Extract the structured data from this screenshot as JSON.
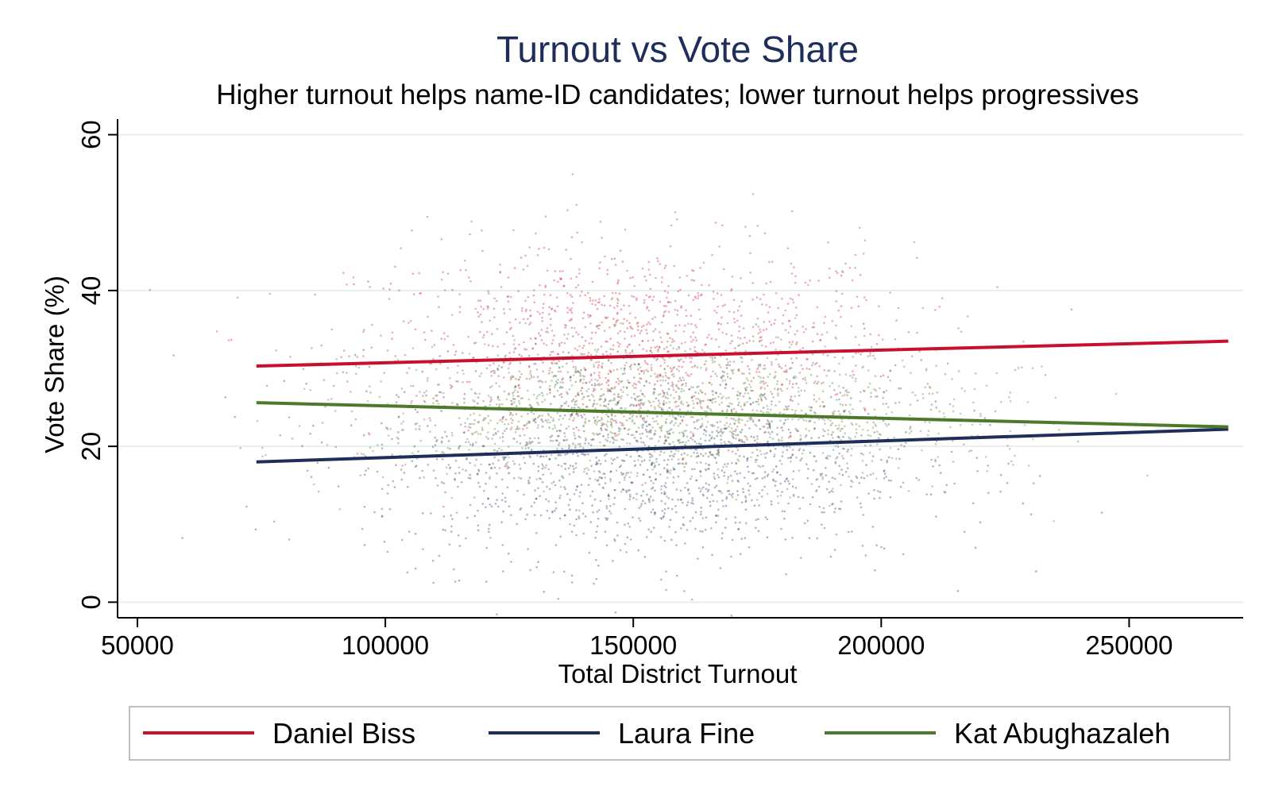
{
  "chart_data": {
    "type": "scatter",
    "title": "Turnout vs Vote Share",
    "subtitle": "Higher turnout helps name-ID candidates; lower turnout helps progressives",
    "xlabel": "Total District Turnout",
    "ylabel": "Vote Share (%)",
    "xlim": [
      46000,
      273000
    ],
    "ylim": [
      -2,
      62
    ],
    "xticks": [
      50000,
      100000,
      150000,
      200000,
      250000
    ],
    "xtick_labels": [
      "50000",
      "100000",
      "150000",
      "200000",
      "250000"
    ],
    "yticks": [
      0,
      20,
      40,
      60
    ],
    "ytick_labels": [
      "0",
      "20",
      "40",
      "60"
    ],
    "grid": true,
    "legend_position": "bottom",
    "series": [
      {
        "name": "Daniel Biss",
        "color": "#c8102e",
        "scatter_center": {
          "x": 150000,
          "y": 32
        },
        "scatter_spread": {
          "x": 28000,
          "y": 7
        },
        "trend": {
          "x": [
            74000,
            270000
          ],
          "y": [
            30.3,
            33.5
          ]
        }
      },
      {
        "name": "Laura Fine",
        "color": "#1f2d5a",
        "scatter_center": {
          "x": 152000,
          "y": 18
        },
        "scatter_spread": {
          "x": 28000,
          "y": 6.5
        },
        "trend": {
          "x": [
            74000,
            270000
          ],
          "y": [
            18.0,
            22.2
          ]
        }
      },
      {
        "name": "Kat Abughazaleh",
        "color": "#4d7a2a",
        "scatter_center": {
          "x": 158000,
          "y": 24
        },
        "scatter_spread": {
          "x": 30000,
          "y": 4.5
        },
        "trend": {
          "x": [
            74000,
            270000
          ],
          "y": [
            25.6,
            22.5
          ]
        }
      }
    ]
  }
}
